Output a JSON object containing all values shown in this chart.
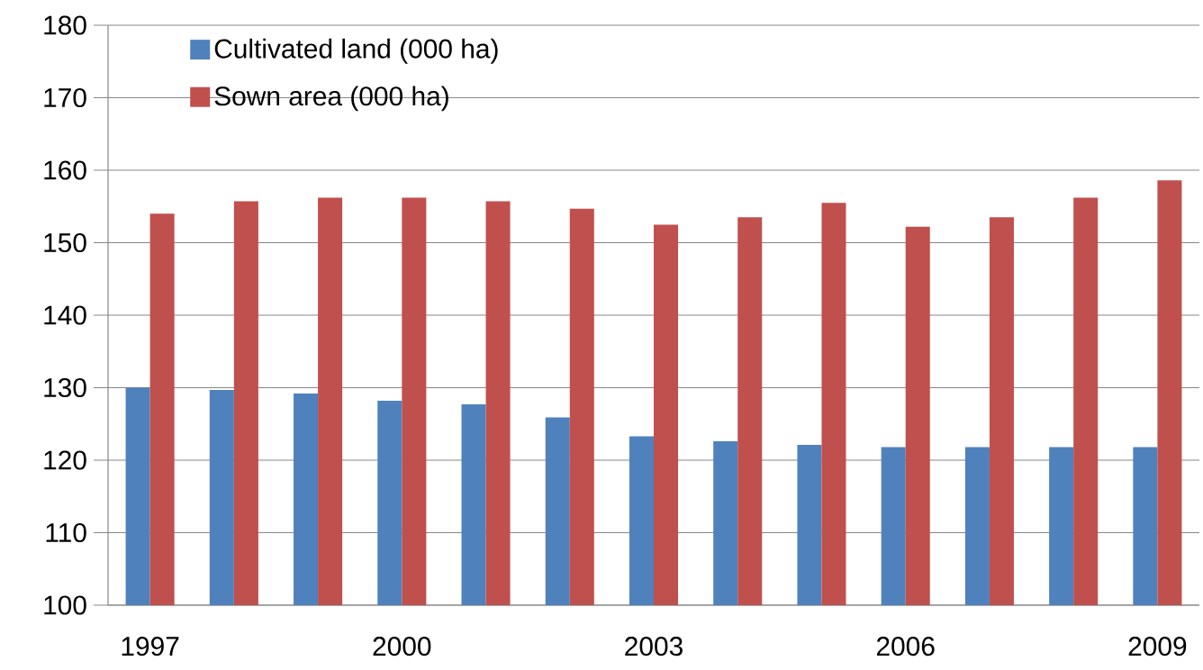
{
  "chart_data": {
    "type": "bar",
    "categories": [
      "1997",
      null,
      null,
      "2000",
      null,
      null,
      "2003",
      null,
      null,
      "2006",
      null,
      null,
      "2009"
    ],
    "series": [
      {
        "name": "Cultivated land (000 ha)",
        "color": "#4f81bd",
        "values": [
          130.0,
          129.7,
          129.2,
          128.2,
          127.7,
          125.9,
          123.3,
          122.6,
          122.1,
          121.8,
          121.8,
          121.8,
          121.8
        ]
      },
      {
        "name": "Sown area (000 ha)",
        "color": "#c0504d",
        "values": [
          154.0,
          155.7,
          156.2,
          156.2,
          155.7,
          154.7,
          152.5,
          153.5,
          155.5,
          152.2,
          153.5,
          156.2,
          158.6
        ]
      }
    ],
    "ylim": [
      100,
      180
    ],
    "yticks": [
      100,
      110,
      120,
      130,
      140,
      150,
      160,
      170,
      180
    ],
    "grid": "y",
    "legend": "top left"
  }
}
